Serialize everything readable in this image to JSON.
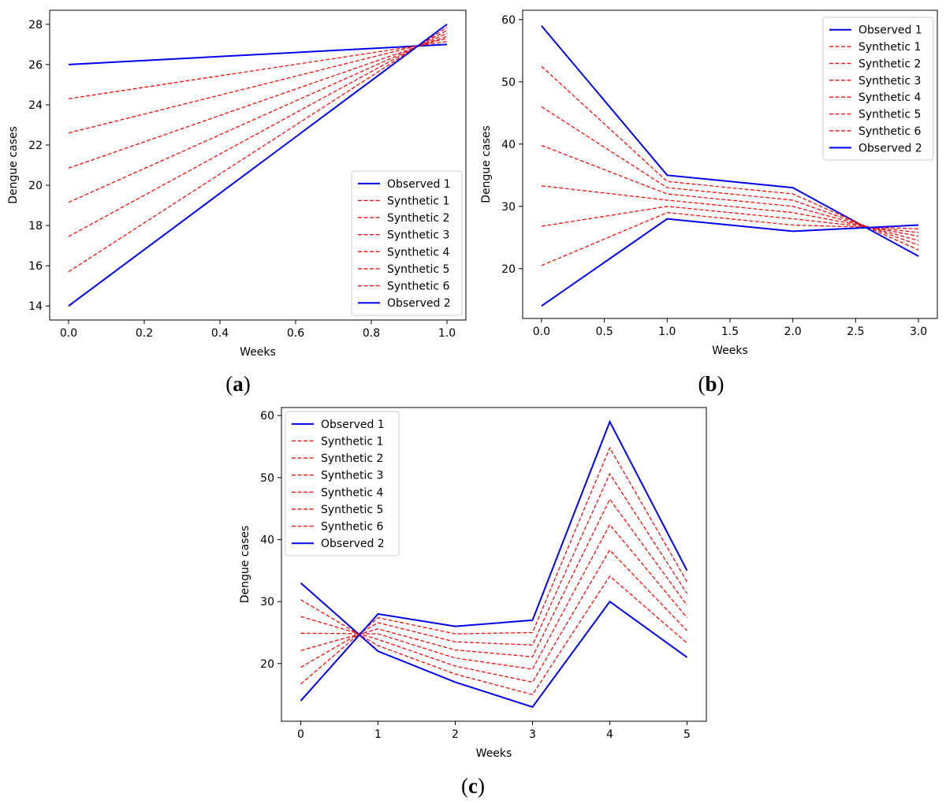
{
  "colors": {
    "observed": "#0000ee",
    "synthetic": "#ee1111",
    "axis": "#000000",
    "legend_border": "#cccccc"
  },
  "chart_data": [
    {
      "id": "a",
      "type": "line",
      "panel_label": "a",
      "xlabel": "Weeks",
      "ylabel": "Dengue cases",
      "xlim": [
        -0.05,
        1.05
      ],
      "ylim": [
        13.3,
        28.7
      ],
      "xticks": [
        0.0,
        0.2,
        0.4,
        0.6,
        0.8,
        1.0
      ],
      "xtick_labels": [
        "0.0",
        "0.2",
        "0.4",
        "0.6",
        "0.8",
        "1.0"
      ],
      "yticks": [
        14,
        16,
        18,
        20,
        22,
        24,
        26,
        28
      ],
      "ytick_labels": [
        "14",
        "16",
        "18",
        "20",
        "22",
        "24",
        "26",
        "28"
      ],
      "legend_position": "lower-right",
      "x": [
        0,
        1
      ],
      "series": [
        {
          "name": "Observed 1",
          "style": "solid",
          "values": [
            26,
            27
          ]
        },
        {
          "name": "Synthetic 1",
          "style": "dashed",
          "values": [
            24.3,
            27.15
          ]
        },
        {
          "name": "Synthetic 2",
          "style": "dashed",
          "values": [
            22.6,
            27.3
          ]
        },
        {
          "name": "Synthetic 3",
          "style": "dashed",
          "values": [
            20.85,
            27.4
          ]
        },
        {
          "name": "Synthetic 4",
          "style": "dashed",
          "values": [
            19.15,
            27.55
          ]
        },
        {
          "name": "Synthetic 5",
          "style": "dashed",
          "values": [
            17.45,
            27.7
          ]
        },
        {
          "name": "Synthetic 6",
          "style": "dashed",
          "values": [
            15.7,
            27.85
          ]
        },
        {
          "name": "Observed 2",
          "style": "solid",
          "values": [
            14,
            28
          ]
        }
      ]
    },
    {
      "id": "b",
      "type": "line",
      "panel_label": "b",
      "xlabel": "Weeks",
      "ylabel": "Dengue cases",
      "xlim": [
        -0.15,
        3.15
      ],
      "ylim": [
        12,
        61.5
      ],
      "xticks": [
        0,
        0.5,
        1,
        1.5,
        2,
        2.5,
        3
      ],
      "xtick_labels": [
        "0.0",
        "0.5",
        "1.0",
        "1.5",
        "2.0",
        "2.5",
        "3.0"
      ],
      "yticks": [
        20,
        30,
        40,
        50,
        60
      ],
      "ytick_labels": [
        "20",
        "30",
        "40",
        "50",
        "60"
      ],
      "legend_position": "top-right",
      "x": [
        0,
        1,
        2,
        3
      ],
      "series": [
        {
          "name": "Observed 1",
          "style": "solid",
          "values": [
            59,
            35,
            33,
            22
          ]
        },
        {
          "name": "Synthetic 1",
          "style": "dashed",
          "values": [
            52.5,
            34,
            32,
            23
          ]
        },
        {
          "name": "Synthetic 2",
          "style": "dashed",
          "values": [
            46,
            33,
            31,
            23.8
          ]
        },
        {
          "name": "Synthetic 3",
          "style": "dashed",
          "values": [
            39.8,
            32,
            30,
            24.5
          ]
        },
        {
          "name": "Synthetic 4",
          "style": "dashed",
          "values": [
            33.3,
            31,
            29,
            25.2
          ]
        },
        {
          "name": "Synthetic 5",
          "style": "dashed",
          "values": [
            26.8,
            30,
            28,
            25.8
          ]
        },
        {
          "name": "Synthetic 6",
          "style": "dashed",
          "values": [
            20.5,
            29,
            27,
            26.4
          ]
        },
        {
          "name": "Observed 2",
          "style": "solid",
          "values": [
            14,
            28,
            26,
            27
          ]
        }
      ]
    },
    {
      "id": "c",
      "type": "line",
      "panel_label": "c",
      "xlabel": "Weeks",
      "ylabel": "Dengue cases",
      "xlim": [
        -0.25,
        5.25
      ],
      "ylim": [
        10.7,
        61.3
      ],
      "xticks": [
        0,
        1,
        2,
        3,
        4,
        5
      ],
      "xtick_labels": [
        "0",
        "1",
        "2",
        "3",
        "4",
        "5"
      ],
      "yticks": [
        20,
        30,
        40,
        50,
        60
      ],
      "ytick_labels": [
        "20",
        "30",
        "40",
        "50",
        "60"
      ],
      "legend_position": "top-left",
      "x": [
        0,
        1,
        2,
        3,
        4,
        5
      ],
      "series": [
        {
          "name": "Observed 1",
          "style": "solid",
          "values": [
            33,
            22,
            17,
            13,
            30,
            21
          ]
        },
        {
          "name": "Synthetic 1",
          "style": "dashed",
          "values": [
            30.3,
            22.9,
            18.3,
            15,
            34.1,
            23.3
          ]
        },
        {
          "name": "Synthetic 2",
          "style": "dashed",
          "values": [
            27.6,
            23.9,
            19.6,
            17,
            38.3,
            25.3
          ]
        },
        {
          "name": "Synthetic 3",
          "style": "dashed",
          "values": [
            24.9,
            24.8,
            20.9,
            19.1,
            42.4,
            27.4
          ]
        },
        {
          "name": "Synthetic 4",
          "style": "dashed",
          "values": [
            22.1,
            25.6,
            22.2,
            21.1,
            46.5,
            29.4
          ]
        },
        {
          "name": "Synthetic 5",
          "style": "dashed",
          "values": [
            19.4,
            26.6,
            23.5,
            23,
            50.6,
            31.3
          ]
        },
        {
          "name": "Synthetic 6",
          "style": "dashed",
          "values": [
            16.7,
            27.4,
            24.8,
            25,
            54.8,
            33.2
          ]
        },
        {
          "name": "Observed 2",
          "style": "solid",
          "values": [
            14,
            28,
            26,
            27,
            59,
            35
          ]
        }
      ]
    }
  ]
}
